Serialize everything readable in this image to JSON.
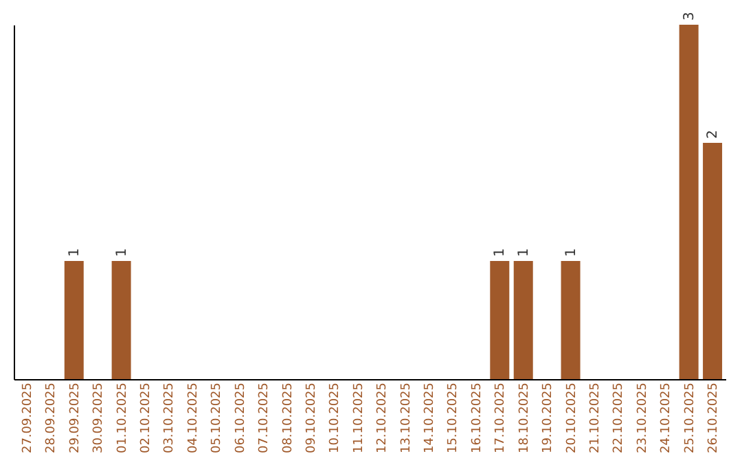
{
  "chart_data": {
    "type": "bar",
    "categories": [
      "27.09.2025",
      "28.09.2025",
      "29.09.2025",
      "30.09.2025",
      "01.10.2025",
      "02.10.2025",
      "03.10.2025",
      "04.10.2025",
      "05.10.2025",
      "06.10.2025",
      "07.10.2025",
      "08.10.2025",
      "09.10.2025",
      "10.10.2025",
      "11.10.2025",
      "12.10.2025",
      "13.10.2025",
      "14.10.2025",
      "15.10.2025",
      "16.10.2025",
      "17.10.2025",
      "18.10.2025",
      "19.10.2025",
      "20.10.2025",
      "21.10.2025",
      "22.10.2025",
      "23.10.2025",
      "24.10.2025",
      "25.10.2025",
      "26.10.2025"
    ],
    "values": [
      0,
      0,
      1,
      0,
      1,
      0,
      0,
      0,
      0,
      0,
      0,
      0,
      0,
      0,
      0,
      0,
      0,
      0,
      0,
      0,
      1,
      1,
      0,
      1,
      0,
      0,
      0,
      0,
      3,
      2
    ],
    "value_labels": [
      null,
      null,
      "1",
      null,
      "1",
      null,
      null,
      null,
      null,
      null,
      null,
      null,
      null,
      null,
      null,
      null,
      null,
      null,
      null,
      null,
      "1",
      "1",
      null,
      "1",
      null,
      null,
      null,
      null,
      "3",
      "2"
    ],
    "color": "#a0592a",
    "tick_labels": "x",
    "grid": false
  }
}
